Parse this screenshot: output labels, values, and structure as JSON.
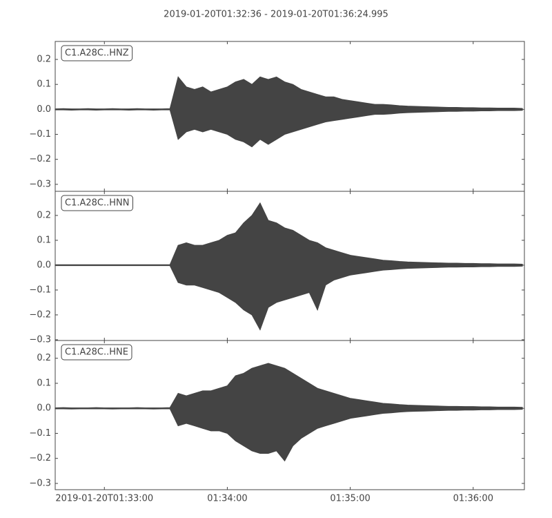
{
  "title": "2019-01-20T01:32:36  -  2019-01-20T01:36:24.995",
  "chart_data": [
    {
      "type": "range-area",
      "label": "C1.A28C..HNZ",
      "color": "#444444",
      "xlim": [
        0,
        228.995
      ],
      "ylim": [
        -0.328,
        0.272
      ],
      "yticks": [
        0.2,
        0.1,
        {
          "value": 0,
          "label": "0.0"
        },
        {
          "value": -0.1,
          "label": "−0.1"
        },
        {
          "value": -0.2,
          "label": "−0.2"
        },
        {
          "value": -0.3,
          "label": "−0.3"
        }
      ],
      "x": [
        0,
        4,
        8,
        12,
        16,
        20,
        24,
        28,
        32,
        36,
        40,
        44,
        48,
        52,
        56,
        60,
        64,
        68,
        72,
        76,
        80,
        84,
        88,
        92,
        96,
        100,
        104,
        108,
        112,
        116,
        120,
        124,
        128,
        132,
        136,
        140,
        144,
        148,
        152,
        156,
        160,
        164,
        168,
        172,
        176,
        180,
        184,
        188,
        192,
        196,
        200,
        204,
        208,
        212,
        216,
        220,
        224,
        228
      ],
      "high": [
        0.002,
        0.003,
        0.002,
        0.002,
        0.003,
        0.002,
        0.002,
        0.003,
        0.002,
        0.002,
        0.003,
        0.002,
        0.002,
        0.002,
        0.003,
        0.13,
        0.09,
        0.08,
        0.09,
        0.07,
        0.08,
        0.09,
        0.11,
        0.12,
        0.1,
        0.13,
        0.12,
        0.13,
        0.11,
        0.1,
        0.08,
        0.07,
        0.06,
        0.05,
        0.05,
        0.04,
        0.035,
        0.03,
        0.025,
        0.02,
        0.02,
        0.018,
        0.015,
        0.013,
        0.012,
        0.011,
        0.01,
        0.009,
        0.008,
        0.008,
        0.007,
        0.007,
        0.006,
        0.006,
        0.005,
        0.005,
        0.005,
        0.004
      ],
      "low": [
        -0.002,
        -0.002,
        -0.003,
        -0.002,
        -0.002,
        -0.003,
        -0.002,
        -0.002,
        -0.002,
        -0.003,
        -0.002,
        -0.002,
        -0.003,
        -0.002,
        -0.002,
        -0.12,
        -0.09,
        -0.08,
        -0.09,
        -0.08,
        -0.09,
        -0.1,
        -0.12,
        -0.13,
        -0.15,
        -0.12,
        -0.14,
        -0.12,
        -0.1,
        -0.09,
        -0.08,
        -0.07,
        -0.06,
        -0.05,
        -0.045,
        -0.04,
        -0.035,
        -0.03,
        -0.025,
        -0.02,
        -0.02,
        -0.018,
        -0.015,
        -0.013,
        -0.012,
        -0.011,
        -0.01,
        -0.009,
        -0.008,
        -0.008,
        -0.007,
        -0.007,
        -0.006,
        -0.006,
        -0.005,
        -0.005,
        -0.005,
        -0.004
      ]
    },
    {
      "type": "range-area",
      "label": "C1.A28C..HNN",
      "color": "#444444",
      "xlim": [
        0,
        228.995
      ],
      "ylim": [
        -0.303,
        0.297
      ],
      "yticks": [
        0.2,
        0.1,
        {
          "value": 0,
          "label": "0.0"
        },
        {
          "value": -0.1,
          "label": "−0.1"
        },
        {
          "value": -0.2,
          "label": "−0.2"
        },
        {
          "value": -0.3,
          "label": "−0.3"
        }
      ],
      "x": [
        0,
        4,
        8,
        12,
        16,
        20,
        24,
        28,
        32,
        36,
        40,
        44,
        48,
        52,
        56,
        60,
        64,
        68,
        72,
        76,
        80,
        84,
        88,
        92,
        96,
        100,
        104,
        108,
        112,
        116,
        120,
        124,
        128,
        132,
        136,
        140,
        144,
        148,
        152,
        156,
        160,
        164,
        168,
        172,
        176,
        180,
        184,
        188,
        192,
        196,
        200,
        204,
        208,
        212,
        216,
        220,
        224,
        228
      ],
      "high": [
        0.002,
        0.002,
        0.002,
        0.002,
        0.002,
        0.002,
        0.002,
        0.002,
        0.002,
        0.002,
        0.002,
        0.002,
        0.002,
        0.002,
        0.002,
        0.08,
        0.09,
        0.08,
        0.08,
        0.09,
        0.1,
        0.12,
        0.13,
        0.17,
        0.2,
        0.25,
        0.18,
        0.17,
        0.15,
        0.14,
        0.12,
        0.1,
        0.09,
        0.07,
        0.06,
        0.05,
        0.04,
        0.035,
        0.03,
        0.025,
        0.02,
        0.018,
        0.015,
        0.013,
        0.012,
        0.011,
        0.01,
        0.009,
        0.008,
        0.008,
        0.007,
        0.007,
        0.006,
        0.006,
        0.005,
        0.005,
        0.005,
        0.004
      ],
      "low": [
        -0.002,
        -0.002,
        -0.002,
        -0.002,
        -0.002,
        -0.002,
        -0.002,
        -0.002,
        -0.002,
        -0.002,
        -0.002,
        -0.002,
        -0.002,
        -0.002,
        -0.002,
        -0.07,
        -0.08,
        -0.08,
        -0.09,
        -0.1,
        -0.11,
        -0.13,
        -0.15,
        -0.18,
        -0.2,
        -0.26,
        -0.17,
        -0.15,
        -0.14,
        -0.13,
        -0.12,
        -0.11,
        -0.18,
        -0.08,
        -0.06,
        -0.05,
        -0.04,
        -0.035,
        -0.03,
        -0.025,
        -0.02,
        -0.018,
        -0.015,
        -0.013,
        -0.012,
        -0.011,
        -0.01,
        -0.009,
        -0.008,
        -0.008,
        -0.007,
        -0.007,
        -0.006,
        -0.006,
        -0.005,
        -0.005,
        -0.005,
        -0.004
      ]
    },
    {
      "type": "range-area",
      "label": "C1.A28C..HNE",
      "color": "#444444",
      "xlim": [
        0,
        228.995
      ],
      "ylim": [
        -0.325,
        0.271
      ],
      "yticks": [
        0.2,
        0.1,
        {
          "value": 0,
          "label": "0.0"
        },
        {
          "value": -0.1,
          "label": "−0.1"
        },
        {
          "value": -0.2,
          "label": "−0.2"
        },
        {
          "value": -0.3,
          "label": "−0.3"
        }
      ],
      "xticks": [
        {
          "value": 24,
          "label": "2019-01-20T01:33:00"
        },
        {
          "value": 84,
          "label": "01:34:00"
        },
        {
          "value": 144,
          "label": "01:35:00"
        },
        {
          "value": 204,
          "label": "01:36:00"
        }
      ],
      "x": [
        0,
        4,
        8,
        12,
        16,
        20,
        24,
        28,
        32,
        36,
        40,
        44,
        48,
        52,
        56,
        60,
        64,
        68,
        72,
        76,
        80,
        84,
        88,
        92,
        96,
        100,
        104,
        108,
        112,
        116,
        120,
        124,
        128,
        132,
        136,
        140,
        144,
        148,
        152,
        156,
        160,
        164,
        168,
        172,
        176,
        180,
        184,
        188,
        192,
        196,
        200,
        204,
        208,
        212,
        216,
        220,
        224,
        228
      ],
      "high": [
        0.002,
        0.003,
        0.002,
        0.002,
        0.002,
        0.003,
        0.002,
        0.002,
        0.002,
        0.002,
        0.003,
        0.002,
        0.002,
        0.002,
        0.003,
        0.06,
        0.05,
        0.06,
        0.07,
        0.07,
        0.08,
        0.09,
        0.13,
        0.14,
        0.16,
        0.17,
        0.18,
        0.17,
        0.16,
        0.14,
        0.12,
        0.1,
        0.08,
        0.07,
        0.06,
        0.05,
        0.04,
        0.035,
        0.03,
        0.025,
        0.02,
        0.018,
        0.015,
        0.013,
        0.012,
        0.011,
        0.01,
        0.009,
        0.008,
        0.008,
        0.007,
        0.007,
        0.006,
        0.006,
        0.005,
        0.005,
        0.005,
        0.004
      ],
      "low": [
        -0.002,
        -0.002,
        -0.003,
        -0.002,
        -0.002,
        -0.002,
        -0.002,
        -0.003,
        -0.002,
        -0.002,
        -0.002,
        -0.002,
        -0.003,
        -0.002,
        -0.002,
        -0.07,
        -0.06,
        -0.07,
        -0.08,
        -0.09,
        -0.09,
        -0.1,
        -0.13,
        -0.15,
        -0.17,
        -0.18,
        -0.18,
        -0.17,
        -0.21,
        -0.15,
        -0.12,
        -0.1,
        -0.08,
        -0.07,
        -0.06,
        -0.05,
        -0.04,
        -0.035,
        -0.03,
        -0.025,
        -0.02,
        -0.018,
        -0.015,
        -0.013,
        -0.012,
        -0.011,
        -0.01,
        -0.009,
        -0.008,
        -0.008,
        -0.007,
        -0.007,
        -0.006,
        -0.006,
        -0.005,
        -0.005,
        -0.005,
        -0.004
      ]
    }
  ]
}
